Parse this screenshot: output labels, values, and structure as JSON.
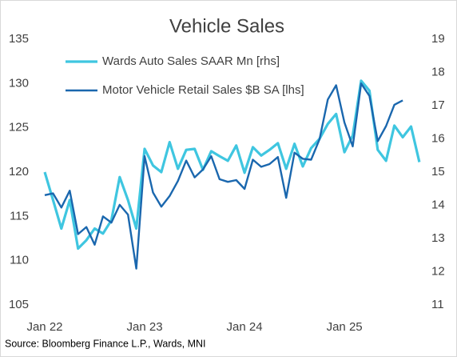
{
  "chart_data": {
    "type": "line",
    "title": "Vehicle Sales",
    "categories": [
      "Jan 22",
      null,
      null,
      null,
      null,
      null,
      null,
      null,
      null,
      null,
      null,
      null,
      "Jan 23",
      null,
      null,
      null,
      null,
      null,
      null,
      null,
      null,
      null,
      null,
      null,
      "Jan 24",
      null,
      null,
      null,
      null,
      null,
      null,
      null,
      null,
      null,
      null,
      null,
      "Jan 25",
      null,
      null,
      null,
      null,
      null,
      null,
      null,
      null,
      null
    ],
    "series": [
      {
        "name": "Wards Auto Sales SAAR Mn [rhs]",
        "color": "#3fc6e0",
        "axis": "y2",
        "values": [
          15.0,
          14.16,
          13.3,
          14.16,
          12.7,
          12.95,
          13.3,
          13.15,
          13.55,
          14.85,
          14.16,
          13.3,
          15.7,
          15.2,
          15.0,
          15.9,
          15.1,
          15.67,
          15.7,
          15.07,
          15.63,
          15.48,
          15.34,
          15.8,
          14.98,
          15.75,
          15.5,
          15.67,
          15.87,
          15.1,
          15.85,
          15.17,
          15.72,
          16.0,
          16.45,
          16.75,
          15.6,
          16.1,
          17.75,
          17.45,
          15.67,
          15.34,
          16.4,
          16.05,
          16.37,
          15.3
        ]
      },
      {
        "name": "Motor Vehicle Retail Sales $B SA [lhs]",
        "color": "#1a67ae",
        "values": [
          117.4,
          117.6,
          116.0,
          117.9,
          113.0,
          113.8,
          111.8,
          115.0,
          114.3,
          116.3,
          115.2,
          109.1,
          121.8,
          117.7,
          116.1,
          117.3,
          119.0,
          121.3,
          119.4,
          120.3,
          121.8,
          119.2,
          118.9,
          119.1,
          118.1,
          121.4,
          120.6,
          120.9,
          121.7,
          117.1,
          122.2,
          121.5,
          121.4,
          123.7,
          128.2,
          129.8,
          125.6,
          122.9,
          130.0,
          128.6,
          123.5,
          125.2,
          127.6,
          128.1,
          null,
          null
        ]
      }
    ],
    "ylim": [
      105,
      135
    ],
    "yticks": [
      105,
      110,
      115,
      120,
      125,
      130,
      135
    ],
    "y2lim": [
      11,
      19
    ],
    "y2ticks": [
      11,
      12,
      13,
      14,
      15,
      16,
      17,
      18,
      19
    ],
    "grid": false,
    "source": "Source: Bloomberg Finance L.P., Wards, MNI"
  }
}
